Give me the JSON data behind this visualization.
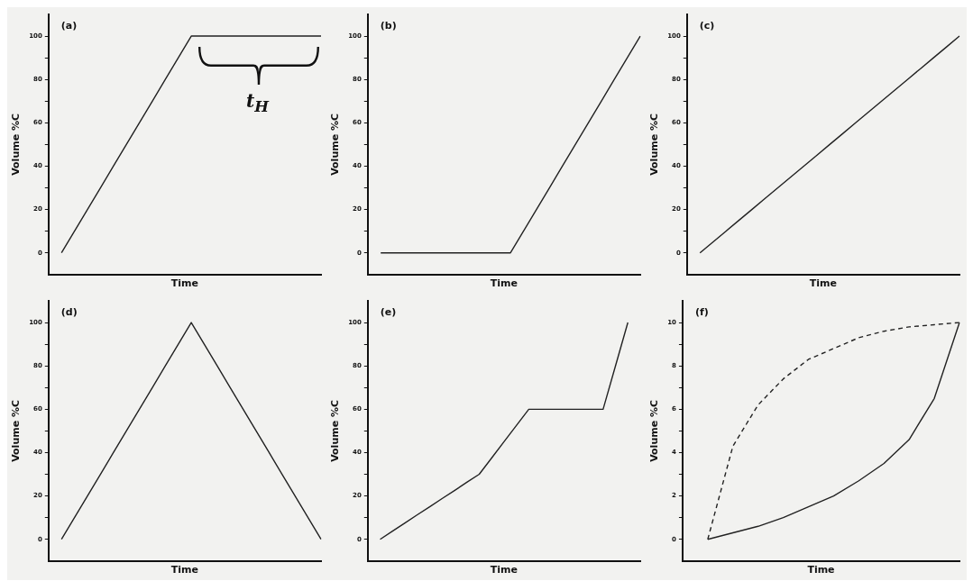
{
  "chart_data": [
    {
      "type": "line",
      "title": "(a)",
      "xlabel": "Time",
      "ylabel": "Volume %C",
      "annotations": [
        "t$_{H}$"
      ],
      "categories": [
        null,
        null,
        null,
        null,
        null,
        null,
        null,
        null,
        null,
        null,
        null,
        null,
        null,
        null,
        null,
        null,
        null,
        null,
        null,
        null,
        null,
        null
      ],
      "series": [
        {
          "color": "#222222",
          "values": [
            null,
            0,
            10,
            20,
            30,
            40,
            50,
            60,
            70,
            80,
            90,
            100,
            100,
            100,
            100,
            100,
            100,
            100,
            100,
            100,
            100,
            100
          ]
        }
      ],
      "ylim": [
        -10,
        110
      ],
      "yticks": [
        0,
        {
          "value": 10,
          "label": null
        },
        20,
        {
          "value": 30,
          "label": null
        },
        40,
        {
          "value": 50,
          "label": null
        },
        60,
        {
          "value": 70,
          "label": null
        },
        80,
        {
          "value": 90,
          "label": null
        },
        100
      ],
      "tick_labels": "y",
      "legend": false,
      "grid": false,
      "marker": "none",
      "line_style": "solid"
    },
    {
      "type": "line",
      "title": "(b)",
      "xlabel": "Time",
      "ylabel": "Volume %C",
      "categories": [
        null,
        null,
        null,
        null,
        null,
        null,
        null,
        null,
        null,
        null,
        null,
        null,
        null,
        null,
        null,
        null,
        null,
        null,
        null,
        null,
        null,
        null
      ],
      "series": [
        {
          "color": "#222222",
          "values": [
            null,
            0,
            0,
            0,
            0,
            0,
            0,
            0,
            0,
            0,
            0,
            0,
            10,
            20,
            30,
            40,
            50,
            60,
            70,
            80,
            90,
            100
          ]
        }
      ],
      "ylim": [
        -10,
        110
      ],
      "yticks": [
        0,
        {
          "value": 10,
          "label": null
        },
        20,
        {
          "value": 30,
          "label": null
        },
        40,
        {
          "value": 50,
          "label": null
        },
        60,
        {
          "value": 70,
          "label": null
        },
        80,
        {
          "value": 90,
          "label": null
        },
        100
      ],
      "tick_labels": "y",
      "legend": false,
      "grid": false,
      "marker": "none",
      "line_style": "solid"
    },
    {
      "type": "line",
      "title": "(c)",
      "xlabel": "Time",
      "ylabel": "Volume %C",
      "categories": [
        null,
        null,
        null,
        null,
        null,
        null,
        null,
        null,
        null,
        null,
        null,
        null,
        null,
        null,
        null,
        null,
        null,
        null,
        null,
        null,
        null,
        null
      ],
      "series": [
        {
          "color": "#222222",
          "values": [
            null,
            0,
            5,
            10,
            15,
            20,
            25,
            30,
            35,
            40,
            45,
            50,
            55,
            60,
            65,
            70,
            75,
            80,
            85,
            90,
            95,
            100
          ]
        }
      ],
      "ylim": [
        -10,
        110
      ],
      "yticks": [
        0,
        {
          "value": 10,
          "label": null
        },
        20,
        {
          "value": 30,
          "label": null
        },
        40,
        {
          "value": 50,
          "label": null
        },
        60,
        {
          "value": 70,
          "label": null
        },
        80,
        {
          "value": 90,
          "label": null
        },
        100
      ],
      "tick_labels": "y",
      "legend": false,
      "grid": false,
      "marker": "none",
      "line_style": "solid"
    },
    {
      "type": "line",
      "title": "(d)",
      "xlabel": "Time",
      "ylabel": "Volume %C",
      "categories": [
        null,
        null,
        null,
        null,
        null,
        null,
        null,
        null,
        null,
        null,
        null,
        null,
        null,
        null,
        null,
        null,
        null,
        null,
        null,
        null,
        null,
        null
      ],
      "series": [
        {
          "color": "#222222",
          "values": [
            null,
            0,
            10,
            20,
            30,
            40,
            50,
            60,
            70,
            80,
            90,
            100,
            90,
            80,
            70,
            60,
            50,
            40,
            30,
            20,
            10,
            0
          ]
        }
      ],
      "ylim": [
        -10,
        110
      ],
      "yticks": [
        0,
        {
          "value": 10,
          "label": null
        },
        20,
        {
          "value": 30,
          "label": null
        },
        40,
        {
          "value": 50,
          "label": null
        },
        60,
        {
          "value": 70,
          "label": null
        },
        80,
        {
          "value": 90,
          "label": null
        },
        100
      ],
      "tick_labels": "y",
      "legend": false,
      "grid": false,
      "marker": "none",
      "line_style": "solid"
    },
    {
      "type": "line",
      "title": "(e)",
      "xlabel": "Time",
      "ylabel": "Volume %C",
      "categories": [
        null,
        null,
        null,
        null,
        null,
        null,
        null,
        null,
        null,
        null,
        null,
        null,
        null,
        null,
        null,
        null,
        null,
        null,
        null,
        null,
        null,
        null,
        null
      ],
      "series": [
        {
          "color": "#222222",
          "values": [
            null,
            0,
            3.8,
            7.5,
            11.3,
            15,
            18.8,
            22.5,
            26.3,
            30,
            37.5,
            45,
            52.5,
            60,
            60,
            60,
            60,
            60,
            60,
            60,
            80,
            100,
            null
          ]
        }
      ],
      "ylim": [
        -10,
        110
      ],
      "yticks": [
        0,
        {
          "value": 10,
          "label": null
        },
        20,
        {
          "value": 30,
          "label": null
        },
        40,
        {
          "value": 50,
          "label": null
        },
        60,
        {
          "value": 70,
          "label": null
        },
        80,
        {
          "value": 90,
          "label": null
        },
        100
      ],
      "tick_labels": "y",
      "legend": false,
      "grid": false,
      "marker": "none",
      "line_style": "solid"
    },
    {
      "type": "line",
      "title": "(f)",
      "xlabel": "Time",
      "ylabel": "Volume %C",
      "categories": [
        null,
        null,
        null,
        null,
        null,
        null,
        null,
        null,
        null,
        null,
        null,
        null
      ],
      "series": [
        {
          "color": "#222222",
          "values": [
            null,
            0,
            0.3,
            0.6,
            1.0,
            1.5,
            2.0,
            2.7,
            3.5,
            4.6,
            6.5,
            10
          ],
          "line_style": "solid"
        },
        {
          "color": "#222222",
          "values": [
            null,
            0,
            4.3,
            6.2,
            7.4,
            8.3,
            8.8,
            9.3,
            9.6,
            9.8,
            9.9,
            10
          ],
          "line_style": "dashed"
        }
      ],
      "ylim": [
        -1,
        11
      ],
      "yticks": [
        0,
        {
          "value": 1,
          "label": null
        },
        2,
        {
          "value": 3,
          "label": null
        },
        4,
        {
          "value": 5,
          "label": null
        },
        6,
        {
          "value": 7,
          "label": null
        },
        8,
        {
          "value": 9,
          "label": null
        },
        10
      ],
      "tick_labels": "y",
      "legend": false,
      "grid": false,
      "marker": "none"
    }
  ]
}
